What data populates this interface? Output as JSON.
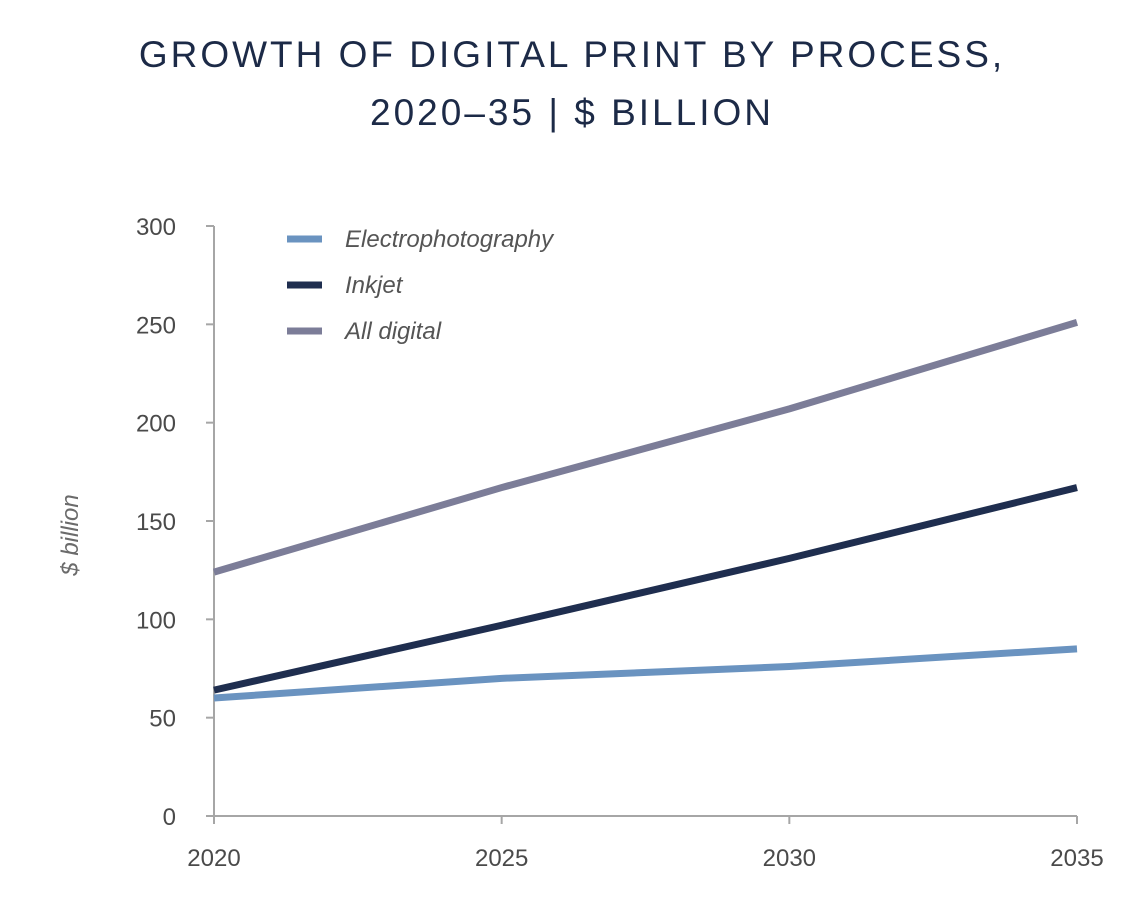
{
  "chart_data": {
    "type": "line",
    "title_line1": "GROWTH OF DIGITAL PRINT BY PROCESS,",
    "title_line2": "2020–35 | $ BILLION",
    "xlabel": "",
    "ylabel": "$ billion",
    "x": [
      2020,
      2025,
      2030,
      2035
    ],
    "x_tick_labels": [
      "2020",
      "2025",
      "2030",
      "2035"
    ],
    "y_ticks": [
      0,
      50,
      100,
      150,
      200,
      250,
      300
    ],
    "y_tick_labels": [
      "0",
      "50",
      "100",
      "150",
      "200",
      "250",
      "300"
    ],
    "ylim": [
      0,
      300
    ],
    "xlim": [
      2020,
      2035
    ],
    "grid": false,
    "legend_position": "top-left",
    "series": [
      {
        "name": "Electrophotography",
        "color": "#6a93c0",
        "values": [
          60,
          70,
          76,
          85
        ]
      },
      {
        "name": "Inkjet",
        "color": "#1f2e4f",
        "values": [
          64,
          97,
          131,
          167
        ]
      },
      {
        "name": "All digital",
        "color": "#7c7d98",
        "values": [
          124,
          167,
          207,
          251
        ]
      }
    ]
  }
}
